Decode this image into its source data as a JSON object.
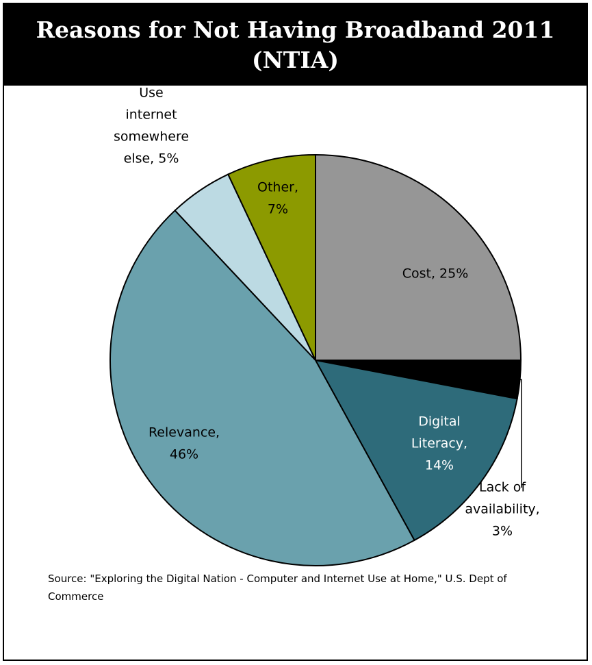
{
  "chart_data": {
    "type": "pie",
    "title": "Reasons for Not Having Broadband 2011 (NTIA)",
    "slices": [
      {
        "name": "Cost",
        "value": 25,
        "label_lines": [
          "Cost, 25%"
        ],
        "color": "#969696"
      },
      {
        "name": "Lack of availability",
        "value": 3,
        "label_lines": [
          "Lack of",
          "availability,",
          "3%"
        ],
        "color": "#000000"
      },
      {
        "name": "Digital Literacy",
        "value": 14,
        "label_lines": [
          "Digital",
          "Literacy,",
          "14%"
        ],
        "color": "#2e6b7a"
      },
      {
        "name": "Relevance",
        "value": 46,
        "label_lines": [
          "Relevance,",
          "46%"
        ],
        "color": "#6aa1ad"
      },
      {
        "name": "Use internet somewhere else",
        "value": 5,
        "label_lines": [
          "Use",
          "internet",
          "somewhere",
          "else, 5%"
        ],
        "color": "#bcdae3"
      },
      {
        "name": "Other",
        "value": 7,
        "label_lines": [
          "Other,",
          "7%"
        ],
        "color": "#8c9a00"
      }
    ],
    "legend": "none"
  },
  "source_note": "Source: \"Exploring the Digital Nation - Computer and Internet Use at Home,\" U.S. Dept of Commerce"
}
